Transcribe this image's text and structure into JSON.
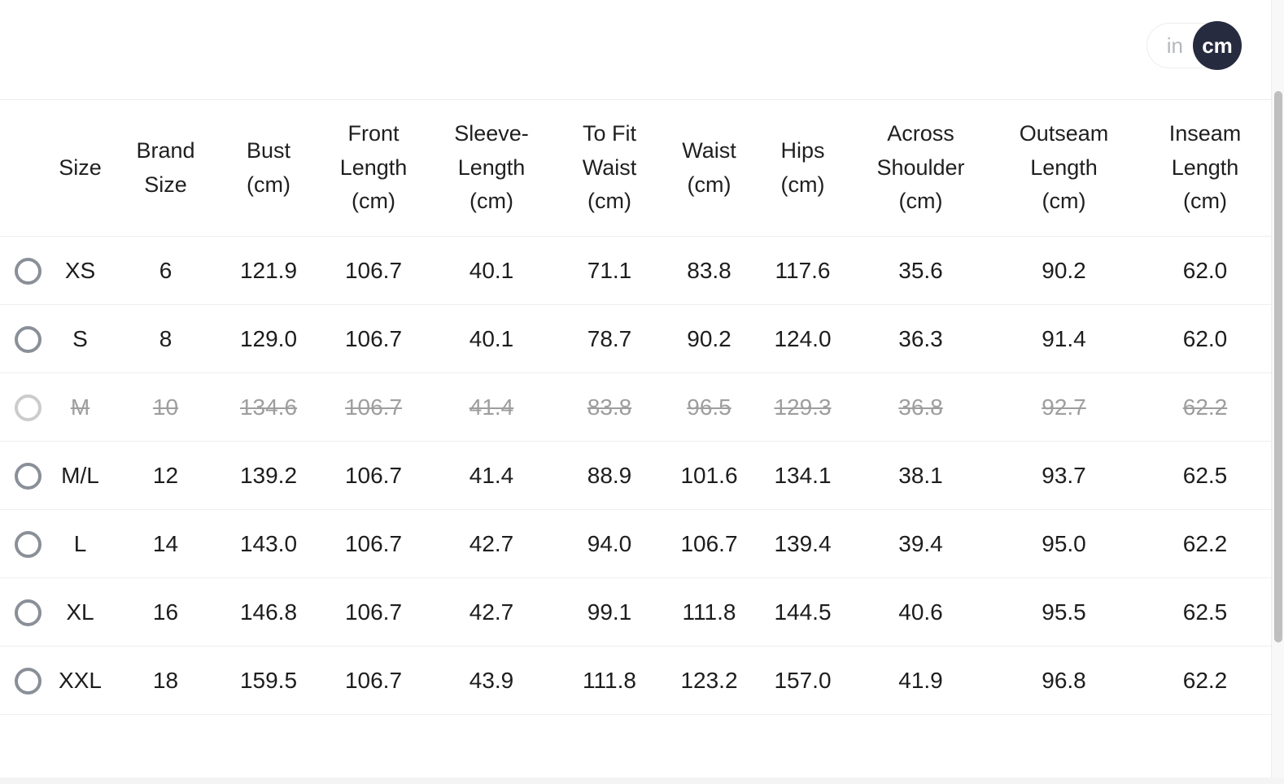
{
  "unit_toggle": {
    "options": [
      "in",
      "cm"
    ],
    "selected": "cm",
    "colors": {
      "selected_bg": "#262b3f",
      "selected_text": "#ffffff",
      "unselected_text": "#b4b7bc"
    }
  },
  "table": {
    "columns": [
      {
        "id": "size",
        "label": "Size",
        "lines": [
          "Size"
        ]
      },
      {
        "id": "brand-size",
        "label": "Brand Size",
        "lines": [
          "Brand",
          "Size"
        ]
      },
      {
        "id": "bust",
        "label": "Bust (cm)",
        "lines": [
          "Bust",
          "(cm)"
        ]
      },
      {
        "id": "front-length",
        "label": "Front Length (cm)",
        "lines": [
          "Front",
          "Length",
          "(cm)"
        ]
      },
      {
        "id": "sleeve-length",
        "label": "Sleeve-Length (cm)",
        "lines": [
          "Sleeve-",
          "Length",
          "(cm)"
        ]
      },
      {
        "id": "to-fit-waist",
        "label": "To Fit Waist (cm)",
        "lines": [
          "To Fit",
          "Waist",
          "(cm)"
        ]
      },
      {
        "id": "waist",
        "label": "Waist (cm)",
        "lines": [
          "Waist",
          "(cm)"
        ]
      },
      {
        "id": "hips",
        "label": "Hips (cm)",
        "lines": [
          "Hips",
          "(cm)"
        ]
      },
      {
        "id": "across-shoulder",
        "label": "Across Shoulder (cm)",
        "lines": [
          "Across",
          "Shoulder",
          "(cm)"
        ]
      },
      {
        "id": "outseam-length",
        "label": "Outseam Length (cm)",
        "lines": [
          "Outseam",
          "Length",
          "(cm)"
        ]
      },
      {
        "id": "inseam-length",
        "label": "Inseam Length (cm)",
        "lines": [
          "Inseam",
          "Length",
          "(cm)"
        ]
      }
    ],
    "rows": [
      {
        "size": "XS",
        "disabled": false,
        "values": [
          "6",
          "121.9",
          "106.7",
          "40.1",
          "71.1",
          "83.8",
          "117.6",
          "35.6",
          "90.2",
          "62.0"
        ]
      },
      {
        "size": "S",
        "disabled": false,
        "values": [
          "8",
          "129.0",
          "106.7",
          "40.1",
          "78.7",
          "90.2",
          "124.0",
          "36.3",
          "91.4",
          "62.0"
        ]
      },
      {
        "size": "M",
        "disabled": true,
        "values": [
          "10",
          "134.6",
          "106.7",
          "41.4",
          "83.8",
          "96.5",
          "129.3",
          "36.8",
          "92.7",
          "62.2"
        ]
      },
      {
        "size": "M/L",
        "disabled": false,
        "values": [
          "12",
          "139.2",
          "106.7",
          "41.4",
          "88.9",
          "101.6",
          "134.1",
          "38.1",
          "93.7",
          "62.5"
        ]
      },
      {
        "size": "L",
        "disabled": false,
        "values": [
          "14",
          "143.0",
          "106.7",
          "42.7",
          "94.0",
          "106.7",
          "139.4",
          "39.4",
          "95.0",
          "62.2"
        ]
      },
      {
        "size": "XL",
        "disabled": false,
        "values": [
          "16",
          "146.8",
          "106.7",
          "42.7",
          "99.1",
          "111.8",
          "144.5",
          "40.6",
          "95.5",
          "62.5"
        ]
      },
      {
        "size": "XXL",
        "disabled": false,
        "values": [
          "18",
          "159.5",
          "106.7",
          "43.9",
          "111.8",
          "123.2",
          "157.0",
          "41.9",
          "96.8",
          "62.2"
        ]
      }
    ]
  }
}
